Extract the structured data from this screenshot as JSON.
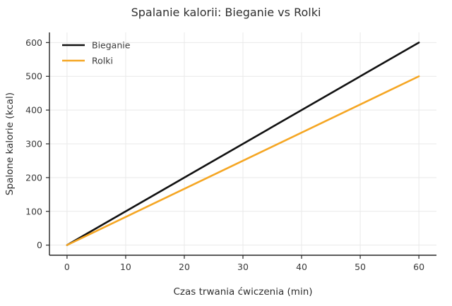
{
  "chart_data": {
    "type": "line",
    "title": "Spalanie kalorii: Bieganie vs Rolki",
    "xlabel": "Czas trwania ćwiczenia (min)",
    "ylabel": "Spalone kalorie (kcal)",
    "x": [
      0,
      60
    ],
    "series": [
      {
        "name": "Bieganie",
        "color": "#111111",
        "values": [
          0,
          600
        ]
      },
      {
        "name": "Rolki",
        "color": "#f5a623",
        "values": [
          0,
          500
        ]
      }
    ],
    "xticks": [
      0,
      10,
      20,
      30,
      40,
      50,
      60
    ],
    "yticks": [
      0,
      100,
      200,
      300,
      400,
      500,
      600
    ],
    "xlim": [
      -3,
      63
    ],
    "ylim": [
      -30,
      630
    ],
    "grid": true,
    "legend_position": "top-left",
    "style": {
      "grid_color": "#e9e9e9",
      "spine_color": "#262626",
      "tick_text_color": "#3a3a3a",
      "label_text_color": "#2f2f2f",
      "line_width": 2.6
    }
  }
}
